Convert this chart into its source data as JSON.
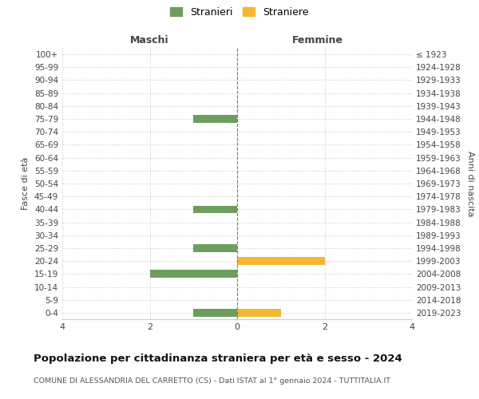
{
  "age_groups": [
    "100+",
    "95-99",
    "90-94",
    "85-89",
    "80-84",
    "75-79",
    "70-74",
    "65-69",
    "60-64",
    "55-59",
    "50-54",
    "45-49",
    "40-44",
    "35-39",
    "30-34",
    "25-29",
    "20-24",
    "15-19",
    "10-14",
    "5-9",
    "0-4"
  ],
  "birth_years": [
    "≤ 1923",
    "1924-1928",
    "1929-1933",
    "1934-1938",
    "1939-1943",
    "1944-1948",
    "1949-1953",
    "1954-1958",
    "1959-1963",
    "1964-1968",
    "1969-1973",
    "1974-1978",
    "1979-1983",
    "1984-1988",
    "1989-1993",
    "1994-1998",
    "1999-2003",
    "2004-2008",
    "2009-2013",
    "2014-2018",
    "2019-2023"
  ],
  "maschi_stranieri": [
    0,
    0,
    0,
    0,
    0,
    1,
    0,
    0,
    0,
    0,
    0,
    0,
    1,
    0,
    0,
    1,
    0,
    2,
    0,
    0,
    1
  ],
  "femmine_straniere": [
    0,
    0,
    0,
    0,
    0,
    0,
    0,
    0,
    0,
    0,
    0,
    0,
    0,
    0,
    0,
    0,
    2,
    0,
    0,
    0,
    1
  ],
  "color_maschi": "#6d9e5e",
  "color_femmine": "#f5b731",
  "xlim": 4,
  "title": "Popolazione per cittadinanza straniera per età e sesso - 2024",
  "subtitle": "COMUNE DI ALESSANDRIA DEL CARRETTO (CS) - Dati ISTAT al 1° gennaio 2024 - TUTTITALIA.IT",
  "ylabel_left": "Fasce di età",
  "ylabel_right": "Anni di nascita",
  "label_maschi": "Maschi",
  "label_femmine": "Femmine",
  "legend_stranieri": "Stranieri",
  "legend_straniere": "Straniere",
  "bg_color": "#ffffff",
  "grid_color": "#cccccc",
  "dashed_center_color": "#888800"
}
